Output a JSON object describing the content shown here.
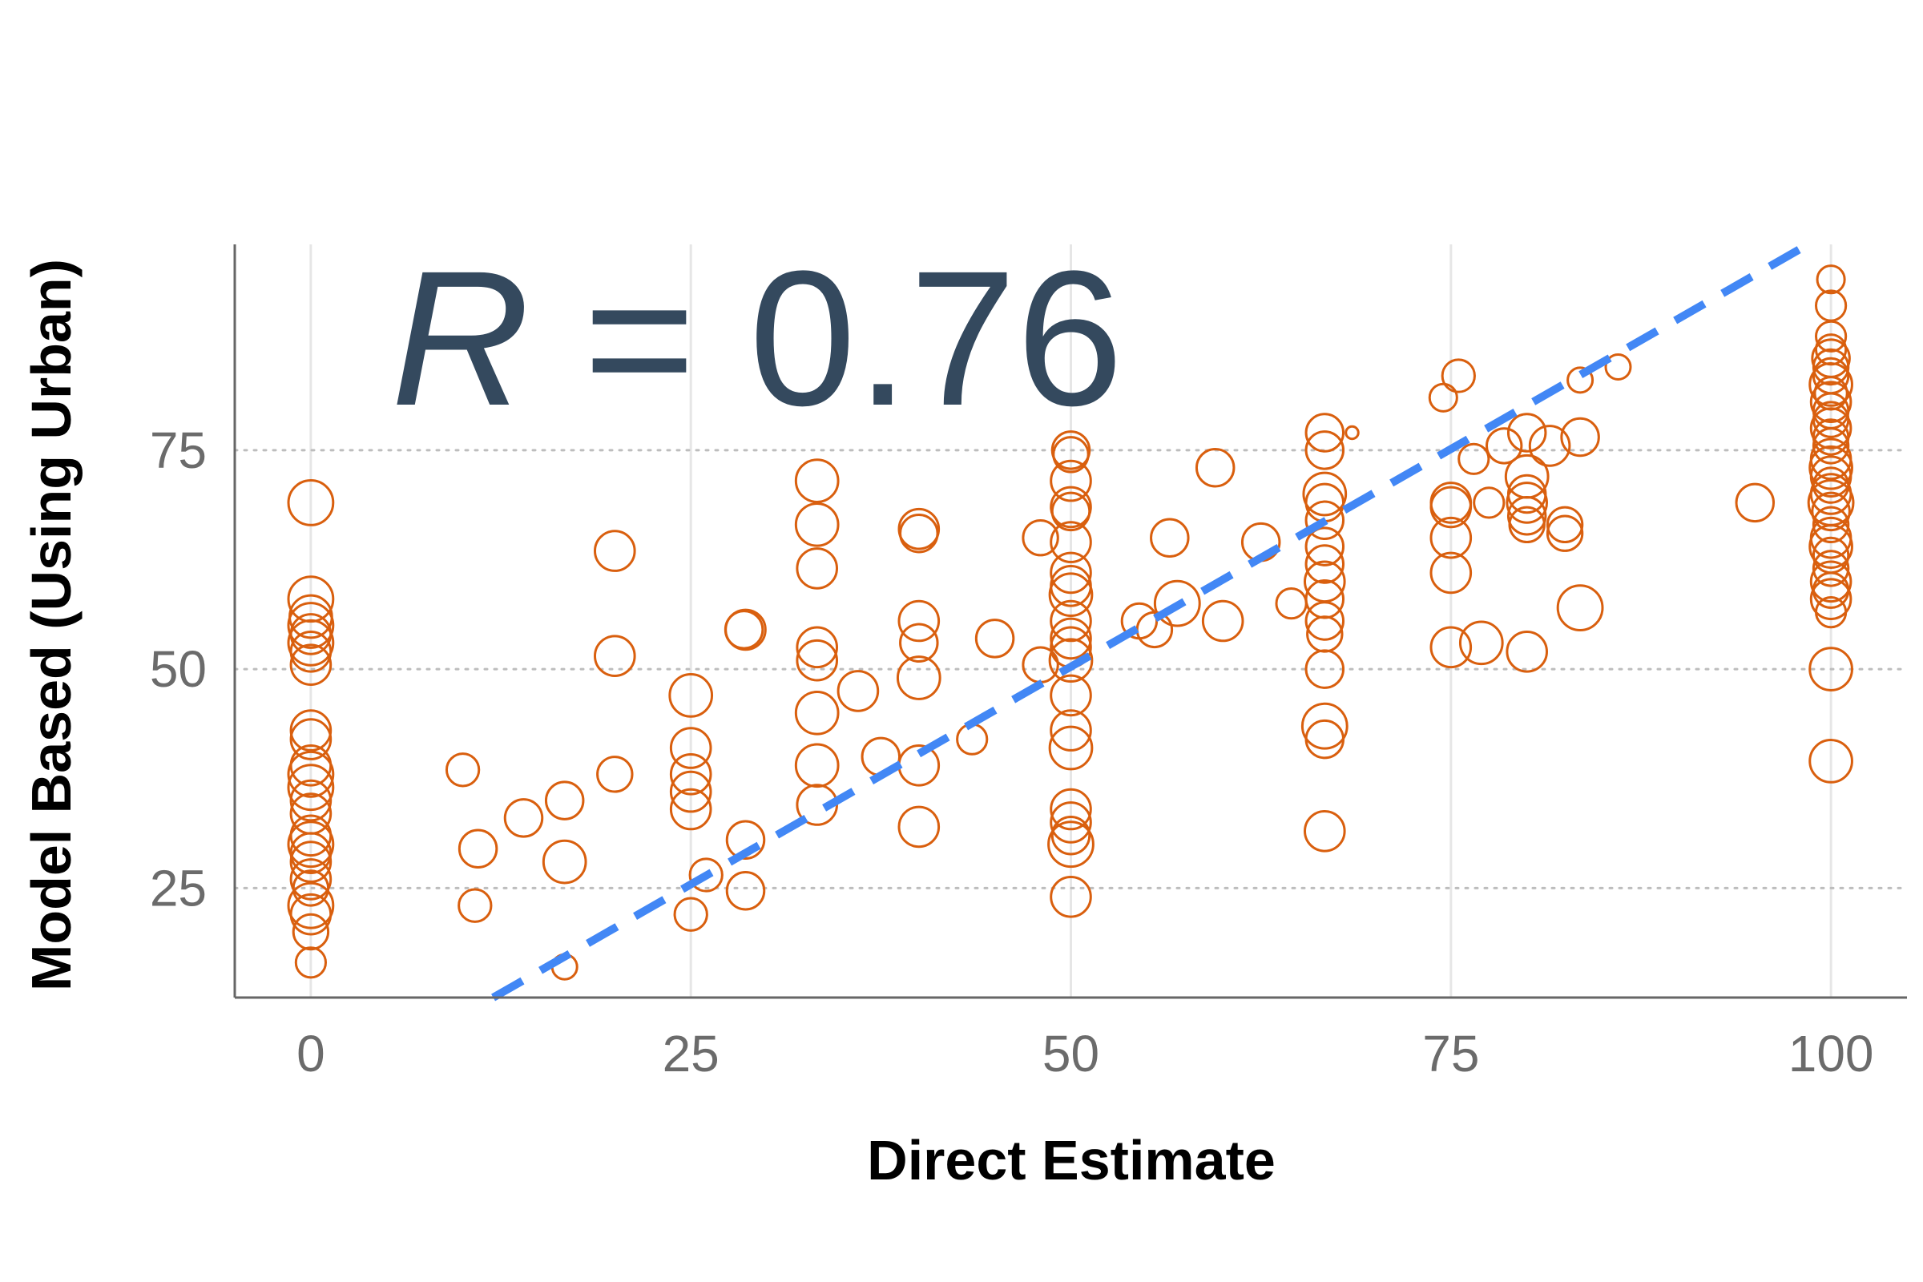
{
  "chart_data": {
    "type": "scatter",
    "xlabel": "Direct Estimate",
    "ylabel": "Model Based (Using Urban)",
    "xlim": [
      -5,
      105
    ],
    "ylim": [
      12.5,
      98.5
    ],
    "x_ticks": [
      0,
      25,
      50,
      75,
      100
    ],
    "x_tick_labels": [
      "0",
      "25",
      "50",
      "75",
      "100"
    ],
    "y_ticks": [
      25,
      50,
      75
    ],
    "y_tick_labels": [
      "25",
      "50",
      "75"
    ],
    "grid": "horizontal dotted major, vertical solid light",
    "annotation": {
      "italic_part": "R",
      "rest": " = 0.76"
    },
    "fit_line": {
      "style": "dashed",
      "points": [
        [
          12,
          12.5
        ],
        [
          98.5,
          98.5
        ]
      ]
    },
    "colors": {
      "points": "#d95f0e",
      "fit_line": "#4287f5",
      "annotation": "#34495e",
      "axis": "#666666"
    },
    "points": [
      [
        0,
        69,
        18
      ],
      [
        0,
        58,
        18
      ],
      [
        0,
        56,
        17
      ],
      [
        0,
        55,
        18
      ],
      [
        0,
        54,
        16
      ],
      [
        0,
        53,
        18
      ],
      [
        0,
        52,
        16
      ],
      [
        0,
        50.5,
        16
      ],
      [
        0,
        43,
        16
      ],
      [
        0,
        42,
        16
      ],
      [
        0,
        39,
        16
      ],
      [
        0,
        38,
        18
      ],
      [
        0,
        36.5,
        18
      ],
      [
        0,
        35,
        16
      ],
      [
        0,
        33.5,
        16
      ],
      [
        0,
        31,
        16
      ],
      [
        0,
        30,
        18
      ],
      [
        0,
        29,
        16
      ],
      [
        0,
        28,
        16
      ],
      [
        0,
        26,
        16
      ],
      [
        0,
        25,
        14
      ],
      [
        0,
        23,
        18
      ],
      [
        0,
        22,
        16
      ],
      [
        0,
        20,
        14
      ],
      [
        0,
        16.5,
        12
      ],
      [
        10,
        38.5,
        13
      ],
      [
        11,
        29.5,
        15
      ],
      [
        10.8,
        23,
        13
      ],
      [
        14,
        33,
        15
      ],
      [
        16.7,
        35,
        15
      ],
      [
        16.7,
        28,
        17
      ],
      [
        16.7,
        16,
        10
      ],
      [
        20,
        63.5,
        16
      ],
      [
        20,
        51.5,
        16
      ],
      [
        20,
        38,
        14
      ],
      [
        25,
        47,
        17
      ],
      [
        25,
        41,
        16
      ],
      [
        25,
        38,
        16
      ],
      [
        25,
        36,
        16
      ],
      [
        25,
        34,
        16
      ],
      [
        26,
        26.5,
        13
      ],
      [
        25,
        22,
        13
      ],
      [
        28.5,
        54.5,
        15
      ],
      [
        28.6,
        54.5,
        16
      ],
      [
        28.6,
        30.5,
        15
      ],
      [
        28.6,
        24.7,
        15
      ],
      [
        33.3,
        71.5,
        17
      ],
      [
        33.3,
        66.5,
        17
      ],
      [
        33.3,
        61.5,
        16
      ],
      [
        33.3,
        52.5,
        16
      ],
      [
        33.3,
        51,
        16
      ],
      [
        33.3,
        45,
        17
      ],
      [
        33.3,
        39,
        17
      ],
      [
        33.3,
        34.5,
        16
      ],
      [
        36,
        47.5,
        16
      ],
      [
        37.5,
        40,
        15
      ],
      [
        40,
        66,
        16
      ],
      [
        40,
        65.5,
        15
      ],
      [
        40,
        55.5,
        16
      ],
      [
        40,
        53,
        15
      ],
      [
        40,
        49,
        17
      ],
      [
        40,
        39,
        16
      ],
      [
        40,
        32,
        16
      ],
      [
        43.5,
        42,
        12
      ],
      [
        45,
        53.5,
        15
      ],
      [
        48,
        65,
        14
      ],
      [
        48,
        50.5,
        14
      ],
      [
        50,
        75,
        15
      ],
      [
        50,
        74.5,
        14
      ],
      [
        50,
        71.5,
        16
      ],
      [
        50,
        68.5,
        16
      ],
      [
        50,
        68,
        15
      ],
      [
        50,
        64.5,
        16
      ],
      [
        50,
        61,
        16
      ],
      [
        50,
        59.5,
        16
      ],
      [
        50,
        58.5,
        17
      ],
      [
        50,
        55.5,
        16
      ],
      [
        50,
        53.5,
        16
      ],
      [
        50,
        52.5,
        16
      ],
      [
        50,
        51,
        17
      ],
      [
        50,
        47,
        16
      ],
      [
        50,
        43,
        16
      ],
      [
        50,
        41,
        17
      ],
      [
        50,
        34,
        16
      ],
      [
        50,
        32.5,
        16
      ],
      [
        50,
        31,
        15
      ],
      [
        50,
        30,
        18
      ],
      [
        50,
        24,
        16
      ],
      [
        54.5,
        55.5,
        14
      ],
      [
        55.5,
        54.5,
        14
      ],
      [
        57,
        57.5,
        18
      ],
      [
        60,
        55.5,
        16
      ],
      [
        59.5,
        73,
        15
      ],
      [
        62.5,
        64.5,
        15
      ],
      [
        56.5,
        65,
        15
      ],
      [
        64.5,
        57.5,
        12
      ],
      [
        66.7,
        77,
        15
      ],
      [
        66.7,
        75,
        15
      ],
      [
        66.7,
        70,
        17
      ],
      [
        66.7,
        69,
        15
      ],
      [
        66.7,
        67,
        15
      ],
      [
        66.7,
        64,
        15
      ],
      [
        66.7,
        62,
        15
      ],
      [
        66.7,
        60,
        16
      ],
      [
        66.7,
        58,
        15
      ],
      [
        66.7,
        55.5,
        15
      ],
      [
        66.7,
        54,
        14
      ],
      [
        66.7,
        50,
        15
      ],
      [
        66.7,
        43.5,
        18
      ],
      [
        66.7,
        42,
        15
      ],
      [
        66.7,
        31.5,
        16
      ],
      [
        68.5,
        77,
        5
      ],
      [
        74.5,
        81,
        11
      ],
      [
        75.5,
        83.5,
        13
      ],
      [
        76.5,
        74,
        12
      ],
      [
        75,
        69,
        16
      ],
      [
        75,
        68.5,
        16
      ],
      [
        75,
        65,
        16
      ],
      [
        75,
        61,
        16
      ],
      [
        75,
        52.5,
        16
      ],
      [
        77,
        53,
        17
      ],
      [
        77.5,
        69,
        12
      ],
      [
        78.5,
        75.5,
        14
      ],
      [
        80,
        77,
        15
      ],
      [
        80,
        72,
        17
      ],
      [
        80,
        70,
        15
      ],
      [
        80,
        69,
        16
      ],
      [
        80,
        67.5,
        15
      ],
      [
        80,
        66.5,
        14
      ],
      [
        80,
        52,
        16
      ],
      [
        81.5,
        75.5,
        16
      ],
      [
        82.5,
        66.5,
        14
      ],
      [
        82.5,
        65.5,
        14
      ],
      [
        83.5,
        83,
        10
      ],
      [
        83.5,
        76.5,
        15
      ],
      [
        83.5,
        57,
        18
      ],
      [
        86,
        84.5,
        10
      ],
      [
        95,
        69,
        15
      ],
      [
        100,
        94.5,
        11
      ],
      [
        100,
        91.5,
        12
      ],
      [
        100,
        88,
        12
      ],
      [
        100,
        86.5,
        12
      ],
      [
        100,
        85.5,
        15
      ],
      [
        100,
        84.5,
        14
      ],
      [
        100,
        83.5,
        14
      ],
      [
        100,
        82.5,
        17
      ],
      [
        100,
        81.5,
        13
      ],
      [
        100,
        80.5,
        16
      ],
      [
        100,
        79.5,
        14
      ],
      [
        100,
        78.5,
        14
      ],
      [
        100,
        77.5,
        16
      ],
      [
        100,
        76.5,
        14
      ],
      [
        100,
        75.5,
        14
      ],
      [
        100,
        74,
        16
      ],
      [
        100,
        73,
        17
      ],
      [
        100,
        72,
        16
      ],
      [
        100,
        71,
        14
      ],
      [
        100,
        70,
        16
      ],
      [
        100,
        69,
        18
      ],
      [
        100,
        68,
        15
      ],
      [
        100,
        66.5,
        14
      ],
      [
        100,
        65,
        16
      ],
      [
        100,
        64,
        17
      ],
      [
        100,
        63,
        14
      ],
      [
        100,
        61.5,
        14
      ],
      [
        100,
        60,
        16
      ],
      [
        100,
        59,
        14
      ],
      [
        100,
        58,
        16
      ],
      [
        100,
        56.5,
        12
      ],
      [
        100,
        50,
        17
      ],
      [
        100,
        39.5,
        17
      ]
    ]
  }
}
